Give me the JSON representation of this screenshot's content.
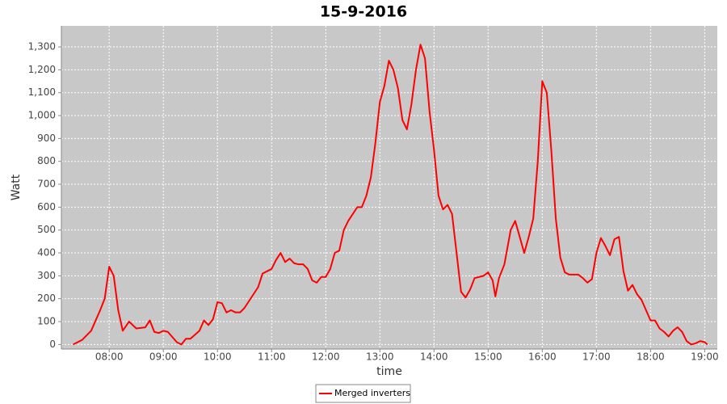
{
  "chart_data": {
    "type": "line",
    "title": "15-9-2016",
    "x_label": "time",
    "y_label": "Watt",
    "x": [
      440,
      450,
      460,
      470,
      475,
      480,
      485,
      490,
      495,
      502,
      510,
      520,
      525,
      530,
      535,
      540,
      545,
      555,
      560,
      565,
      570,
      580,
      585,
      590,
      595,
      600,
      605,
      610,
      615,
      620,
      625,
      630,
      640,
      645,
      650,
      655,
      660,
      665,
      670,
      675,
      680,
      685,
      690,
      695,
      700,
      705,
      710,
      715,
      720,
      725,
      730,
      735,
      740,
      745,
      750,
      755,
      760,
      765,
      770,
      775,
      780,
      785,
      790,
      795,
      800,
      805,
      810,
      815,
      820,
      825,
      830,
      835,
      840,
      845,
      850,
      855,
      860,
      865,
      870,
      875,
      880,
      885,
      890,
      895,
      900,
      905,
      908,
      912,
      918,
      925,
      930,
      935,
      940,
      945,
      950,
      955,
      960,
      965,
      970,
      975,
      980,
      985,
      990,
      1000,
      1005,
      1010,
      1015,
      1020,
      1025,
      1030,
      1035,
      1040,
      1045,
      1050,
      1055,
      1060,
      1065,
      1070,
      1075,
      1080,
      1085,
      1090,
      1095,
      1100,
      1105,
      1110,
      1115,
      1120,
      1125,
      1130,
      1135,
      1140,
      1143
    ],
    "series": [
      {
        "name": "Merged inverters",
        "color": "#ff0000",
        "values": [
          0,
          20,
          60,
          150,
          200,
          340,
          300,
          150,
          60,
          100,
          70,
          75,
          105,
          55,
          50,
          60,
          55,
          10,
          0,
          25,
          25,
          60,
          105,
          85,
          110,
          185,
          180,
          140,
          150,
          140,
          140,
          160,
          220,
          250,
          310,
          320,
          330,
          370,
          400,
          360,
          375,
          355,
          350,
          350,
          330,
          280,
          270,
          295,
          295,
          330,
          400,
          410,
          500,
          540,
          570,
          600,
          600,
          650,
          730,
          880,
          1060,
          1130,
          1240,
          1200,
          1120,
          980,
          940,
          1050,
          1200,
          1310,
          1250,
          1020,
          850,
          650,
          590,
          610,
          570,
          400,
          230,
          205,
          240,
          290,
          295,
          300,
          315,
          280,
          210,
          290,
          350,
          500,
          540,
          470,
          400,
          470,
          550,
          800,
          1150,
          1100,
          850,
          550,
          380,
          315,
          305,
          305,
          290,
          270,
          285,
          400,
          465,
          430,
          390,
          460,
          470,
          320,
          235,
          260,
          220,
          195,
          150,
          105,
          105,
          70,
          55,
          35,
          60,
          75,
          55,
          15,
          0,
          5,
          15,
          10,
          0
        ]
      }
    ],
    "xlim": [
      427,
      1154
    ],
    "xticks": [
      {
        "value": 480,
        "label": "08:00"
      },
      {
        "value": 540,
        "label": "09:00"
      },
      {
        "value": 600,
        "label": "10:00"
      },
      {
        "value": 660,
        "label": "11:00"
      },
      {
        "value": 720,
        "label": "12:00"
      },
      {
        "value": 780,
        "label": "13:00"
      },
      {
        "value": 840,
        "label": "14:00"
      },
      {
        "value": 900,
        "label": "15:00"
      },
      {
        "value": 960,
        "label": "16:00"
      },
      {
        "value": 1020,
        "label": "17:00"
      },
      {
        "value": 1080,
        "label": "18:00"
      },
      {
        "value": 1140,
        "label": "19:00"
      }
    ],
    "ylim": [
      -20,
      1392
    ],
    "yticks": [
      0,
      100,
      200,
      300,
      400,
      500,
      600,
      700,
      800,
      900,
      {
        "value": 1000,
        "label": "1,000"
      },
      {
        "value": 1100,
        "label": "1,100"
      },
      {
        "value": 1200,
        "label": "1,200"
      },
      {
        "value": 1300,
        "label": "1,300"
      }
    ],
    "grid": true,
    "legend": "bottom"
  }
}
